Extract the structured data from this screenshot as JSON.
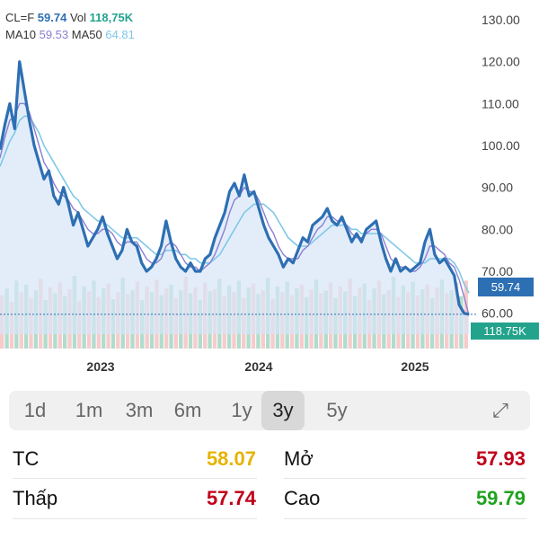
{
  "header": {
    "symbol_label": "CL=F",
    "price": "59.74",
    "vol_label": "Vol",
    "vol_value": "118,75K",
    "ma10_label": "MA10",
    "ma10_value": "59.53",
    "ma50_label": "MA50",
    "ma50_value": "64.81"
  },
  "colors": {
    "price_line": "#2d6fb3",
    "ma10": "#8a7fd1",
    "ma50": "#7fc8e8",
    "vol_value": "#23a38c",
    "tc_value": "#e6b300",
    "open_value": "#c0001a",
    "low_value": "#c0001a",
    "high_value": "#1fa31f"
  },
  "badges": {
    "last_price": "59.74",
    "last_volume": "118.75K"
  },
  "timeframes": [
    "1d",
    "1m",
    "3m",
    "6m",
    "1y",
    "3y",
    "5y"
  ],
  "active_timeframe": "3y",
  "stats": {
    "tc_label": "TC",
    "tc_value": "58.07",
    "open_label": "Mở",
    "open_value": "57.93",
    "low_label": "Thấp",
    "low_value": "57.74",
    "high_label": "Cao",
    "high_value": "59.79"
  },
  "chart_data": {
    "type": "line",
    "x_ticks": [
      "2023",
      "2024",
      "2025"
    ],
    "y_ticks": [
      "130.00",
      "120.00",
      "110.00",
      "100.00",
      "90.00",
      "80.00",
      "70.00",
      "60.00"
    ],
    "ylim": [
      55,
      133
    ],
    "grid": false,
    "series": [
      {
        "name": "CL=F",
        "values": [
          99,
          105,
          110,
          104,
          120,
          113,
          106,
          100,
          96,
          92,
          94,
          88,
          86,
          90,
          86,
          81,
          84,
          80,
          76,
          78,
          80,
          83,
          79,
          76,
          73,
          75,
          80,
          77,
          76,
          72,
          70,
          71,
          73,
          76,
          82,
          77,
          73,
          71,
          70,
          72,
          70,
          70,
          73,
          74,
          78,
          81,
          84,
          89,
          91,
          88,
          93,
          88,
          89,
          85,
          81,
          78,
          76,
          74,
          71,
          73,
          72,
          75,
          78,
          77,
          81,
          82,
          83,
          85,
          82,
          81,
          83,
          80,
          77,
          79,
          77,
          80,
          81,
          82,
          77,
          73,
          70,
          73,
          70,
          71,
          70,
          71,
          72,
          77,
          80,
          74,
          72,
          73,
          71,
          69,
          62,
          60,
          59.74
        ]
      },
      {
        "name": "MA10",
        "values": [
          97,
          102,
          106,
          107,
          110,
          110,
          108,
          104,
          100,
          96,
          94,
          91,
          89,
          88,
          87,
          85,
          84,
          82,
          80,
          79,
          79,
          80,
          80,
          79,
          77,
          76,
          77,
          77,
          77,
          75,
          73,
          72,
          72,
          73,
          76,
          77,
          76,
          74,
          72,
          71,
          71,
          70,
          71,
          72,
          74,
          77,
          80,
          84,
          87,
          88,
          90,
          89,
          89,
          87,
          84,
          81,
          79,
          76,
          74,
          73,
          73,
          73,
          75,
          76,
          78,
          80,
          81,
          83,
          83,
          82,
          82,
          81,
          79,
          78,
          78,
          79,
          80,
          80,
          79,
          76,
          73,
          72,
          71,
          71,
          70,
          70,
          71,
          73,
          76,
          76,
          75,
          74,
          72,
          71,
          68,
          64,
          59.53
        ]
      },
      {
        "name": "MA50",
        "values": [
          95,
          98,
          101,
          103,
          106,
          107,
          107,
          105,
          103,
          100,
          98,
          96,
          94,
          92,
          90,
          88,
          87,
          85,
          84,
          83,
          82,
          82,
          81,
          80,
          79,
          78,
          78,
          78,
          78,
          77,
          76,
          75,
          74,
          74,
          75,
          75,
          75,
          74,
          74,
          73,
          73,
          72,
          72,
          72,
          73,
          74,
          76,
          78,
          80,
          82,
          84,
          85,
          86,
          86,
          86,
          85,
          84,
          82,
          80,
          78,
          77,
          76,
          76,
          76,
          77,
          78,
          79,
          80,
          81,
          81,
          81,
          81,
          80,
          80,
          79,
          79,
          79,
          79,
          79,
          78,
          77,
          76,
          75,
          74,
          73,
          72,
          72,
          72,
          73,
          73,
          73,
          73,
          73,
          72,
          70,
          67,
          64.81
        ]
      }
    ],
    "volume": {
      "values": [
        0.55,
        0.62,
        0.48,
        0.7,
        0.58,
        0.66,
        0.52,
        0.6,
        0.72,
        0.5,
        0.63,
        0.57,
        0.68,
        0.54,
        0.61,
        0.75,
        0.49,
        0.64,
        0.59,
        0.7,
        0.53,
        0.62,
        0.67,
        0.51,
        0.58,
        0.73,
        0.56,
        0.6,
        0.69,
        0.5,
        0.64,
        0.58,
        0.71,
        0.55,
        0.62,
        0.66,
        0.52,
        0.6,
        0.74,
        0.57,
        0.63,
        0.5,
        0.68,
        0.59,
        0.61,
        0.72,
        0.54,
        0.65,
        0.58,
        0.7,
        0.52,
        0.63,
        0.67,
        0.56,
        0.6,
        0.73,
        0.51,
        0.64,
        0.58,
        0.69,
        0.55,
        0.62,
        0.66,
        0.53,
        0.61,
        0.71,
        0.57,
        0.6,
        0.68,
        0.52,
        0.64,
        0.59,
        0.72,
        0.54,
        0.63,
        0.67,
        0.5,
        0.62,
        0.7,
        0.56,
        0.6,
        0.74,
        0.53,
        0.65,
        0.58,
        0.69,
        0.55,
        0.61,
        0.66,
        0.52,
        0.63,
        0.71,
        0.57,
        0.6,
        0.68,
        0.54,
        0.7
      ],
      "up_color": "#6fc0a6",
      "down_color": "#f1a0a0"
    }
  }
}
